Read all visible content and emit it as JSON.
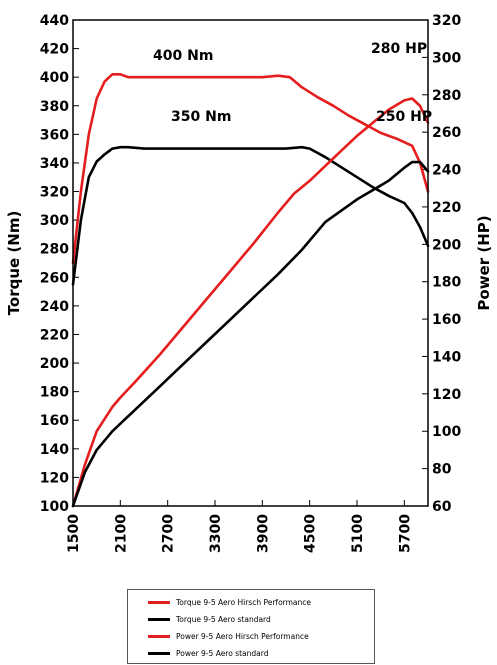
{
  "chart_data": {
    "type": "line",
    "xlabel": "",
    "ylabel": "Torque (Nm)",
    "y2label": "Power (HP)",
    "xlim": [
      1500,
      6000
    ],
    "ylim": [
      100,
      440
    ],
    "y2lim": [
      60,
      320
    ],
    "xticks": [
      "1500",
      "2100",
      "2700",
      "3300",
      "3900",
      "4500",
      "5100",
      "5700"
    ],
    "yticks": [
      "100",
      "120",
      "140",
      "160",
      "180",
      "200",
      "220",
      "240",
      "260",
      "280",
      "300",
      "320",
      "340",
      "360",
      "380",
      "400",
      "420",
      "440"
    ],
    "y2ticks": [
      "60",
      "80",
      "100",
      "120",
      "140",
      "160",
      "180",
      "200",
      "220",
      "240",
      "260",
      "280",
      "300",
      "320"
    ],
    "grid": false,
    "legend_position": "bottom",
    "annotations": {
      "torque_hirsch": "400 Nm",
      "torque_std": "350 Nm",
      "power_hirsch": "280 HP",
      "power_std": "250 HP"
    },
    "series": [
      {
        "name": "Torque 9-5 Aero Hirsch Performance",
        "axis": "left",
        "color": "#e41e1e",
        "points": [
          [
            1500,
            270
          ],
          [
            1600,
            320
          ],
          [
            1700,
            360
          ],
          [
            1800,
            385
          ],
          [
            1900,
            397
          ],
          [
            2000,
            402
          ],
          [
            2100,
            402
          ],
          [
            2200,
            400
          ],
          [
            2400,
            400
          ],
          [
            2700,
            400
          ],
          [
            3000,
            400
          ],
          [
            3300,
            400
          ],
          [
            3600,
            400
          ],
          [
            3900,
            400
          ],
          [
            4100,
            401
          ],
          [
            4250,
            400
          ],
          [
            4400,
            393
          ],
          [
            4600,
            386
          ],
          [
            4800,
            380
          ],
          [
            5000,
            373
          ],
          [
            5200,
            367
          ],
          [
            5400,
            361
          ],
          [
            5600,
            357
          ],
          [
            5800,
            352
          ],
          [
            5900,
            340
          ],
          [
            6000,
            320
          ]
        ]
      },
      {
        "name": "Torque 9-5 Aero standard",
        "axis": "left",
        "color": "#000000",
        "points": [
          [
            1500,
            255
          ],
          [
            1600,
            300
          ],
          [
            1700,
            330
          ],
          [
            1800,
            341
          ],
          [
            1900,
            346
          ],
          [
            2000,
            350
          ],
          [
            2100,
            351
          ],
          [
            2200,
            351
          ],
          [
            2400,
            350
          ],
          [
            2700,
            350
          ],
          [
            3000,
            350
          ],
          [
            3300,
            350
          ],
          [
            3600,
            350
          ],
          [
            3900,
            350
          ],
          [
            4200,
            350
          ],
          [
            4400,
            351
          ],
          [
            4500,
            350
          ],
          [
            4700,
            344
          ],
          [
            4900,
            337
          ],
          [
            5100,
            330
          ],
          [
            5300,
            323
          ],
          [
            5500,
            317
          ],
          [
            5700,
            312
          ],
          [
            5800,
            305
          ],
          [
            5900,
            295
          ],
          [
            6000,
            282
          ]
        ]
      },
      {
        "name": "Power 9-5 Aero Hirsch Performance",
        "axis": "right",
        "color": "#e41e1e",
        "points": [
          [
            1500,
            60
          ],
          [
            1650,
            82
          ],
          [
            1800,
            100
          ],
          [
            2000,
            113
          ],
          [
            2100,
            118
          ],
          [
            2300,
            127
          ],
          [
            2600,
            141
          ],
          [
            2900,
            156
          ],
          [
            3200,
            171
          ],
          [
            3500,
            186
          ],
          [
            3800,
            201
          ],
          [
            4100,
            217
          ],
          [
            4300,
            227
          ],
          [
            4500,
            234
          ],
          [
            4700,
            242
          ],
          [
            4900,
            250
          ],
          [
            5100,
            258
          ],
          [
            5300,
            265
          ],
          [
            5500,
            272
          ],
          [
            5700,
            277
          ],
          [
            5800,
            278
          ],
          [
            5900,
            274
          ],
          [
            6000,
            265
          ]
        ]
      },
      {
        "name": "Power 9-5 Aero standard",
        "axis": "right",
        "color": "#000000",
        "points": [
          [
            1500,
            60
          ],
          [
            1650,
            78
          ],
          [
            1800,
            90
          ],
          [
            2000,
            100
          ],
          [
            2300,
            112
          ],
          [
            2600,
            124
          ],
          [
            2900,
            136
          ],
          [
            3200,
            148
          ],
          [
            3500,
            160
          ],
          [
            3800,
            172
          ],
          [
            4100,
            184
          ],
          [
            4400,
            197
          ],
          [
            4600,
            207
          ],
          [
            4700,
            212
          ],
          [
            4900,
            218
          ],
          [
            5100,
            224
          ],
          [
            5300,
            229
          ],
          [
            5500,
            234
          ],
          [
            5700,
            241
          ],
          [
            5800,
            244
          ],
          [
            5900,
            244
          ],
          [
            6000,
            239
          ]
        ]
      }
    ]
  }
}
